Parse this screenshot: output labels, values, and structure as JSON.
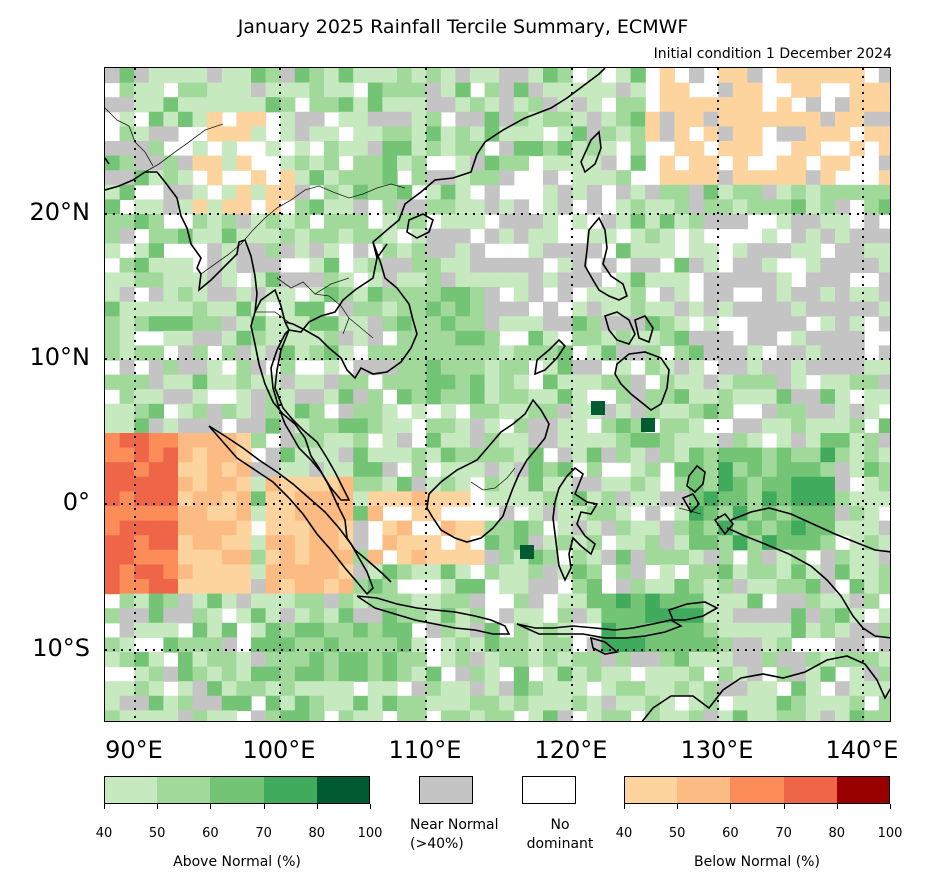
{
  "title": "January 2025 Rainfall Tercile Summary, ECMWF",
  "subtitle": "Initial condition 1 December 2024",
  "lat_labels": [
    "20°N",
    "10°N",
    "0°",
    "10°S"
  ],
  "lon_labels": [
    "90°E",
    "100°E",
    "110°E",
    "120°E",
    "130°E",
    "140°E"
  ],
  "legend": {
    "above": {
      "caption": "Above Normal (%)",
      "ticks": [
        "40",
        "50",
        "60",
        "70",
        "80",
        "100"
      ],
      "colors": [
        "#c7e9c0",
        "#a1d99b",
        "#74c476",
        "#41ab5d",
        "#005a32"
      ]
    },
    "near": {
      "caption": "Near Normal\n(>40%)",
      "color": "#c4c4c4"
    },
    "none": {
      "caption": "No\ndominant",
      "color": "#ffffff"
    },
    "below": {
      "caption": "Below Normal (%)",
      "ticks": [
        "40",
        "50",
        "60",
        "70",
        "80",
        "100"
      ],
      "colors": [
        "#fdd49e",
        "#fdbb84",
        "#fc8d59",
        "#ef6548",
        "#990000"
      ]
    }
  },
  "map_colors": {
    "coast": "#000000",
    "gridline": "#000000"
  }
}
